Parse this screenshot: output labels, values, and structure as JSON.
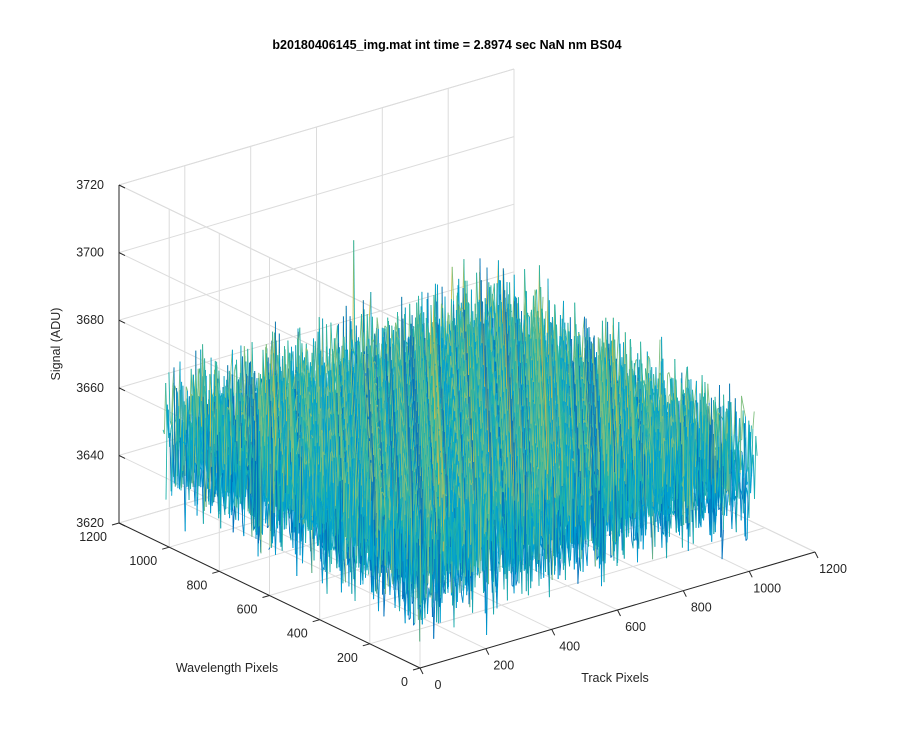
{
  "chart_data": {
    "type": "surface",
    "title": "b20180406145_img.mat int time = 2.8974 sec  NaN nm BS04",
    "xlabel": "Track Pixels",
    "ylabel": "Wavelength Pixels",
    "zlabel": "Signal (ADU)",
    "x_ticks": [
      "0",
      "200",
      "400",
      "600",
      "800",
      "1000",
      "1200"
    ],
    "y_ticks": [
      "0",
      "200",
      "400",
      "600",
      "800",
      "1000",
      "1200"
    ],
    "z_ticks": [
      "3620",
      "3640",
      "3660",
      "3680",
      "3700",
      "3720"
    ],
    "xlim": [
      0,
      1200
    ],
    "ylim": [
      0,
      1200
    ],
    "zlim": [
      3620,
      3720
    ],
    "data_extent": {
      "x": [
        0,
        1024
      ],
      "y": [
        0,
        1024
      ]
    },
    "signal": {
      "mean": 3652,
      "noise_range": [
        3628,
        3688
      ]
    },
    "grid": true,
    "colormap": [
      "#0072bd",
      "#00a0d0",
      "#20b2aa",
      "#7fbf7f",
      "#c8bf4a"
    ]
  }
}
